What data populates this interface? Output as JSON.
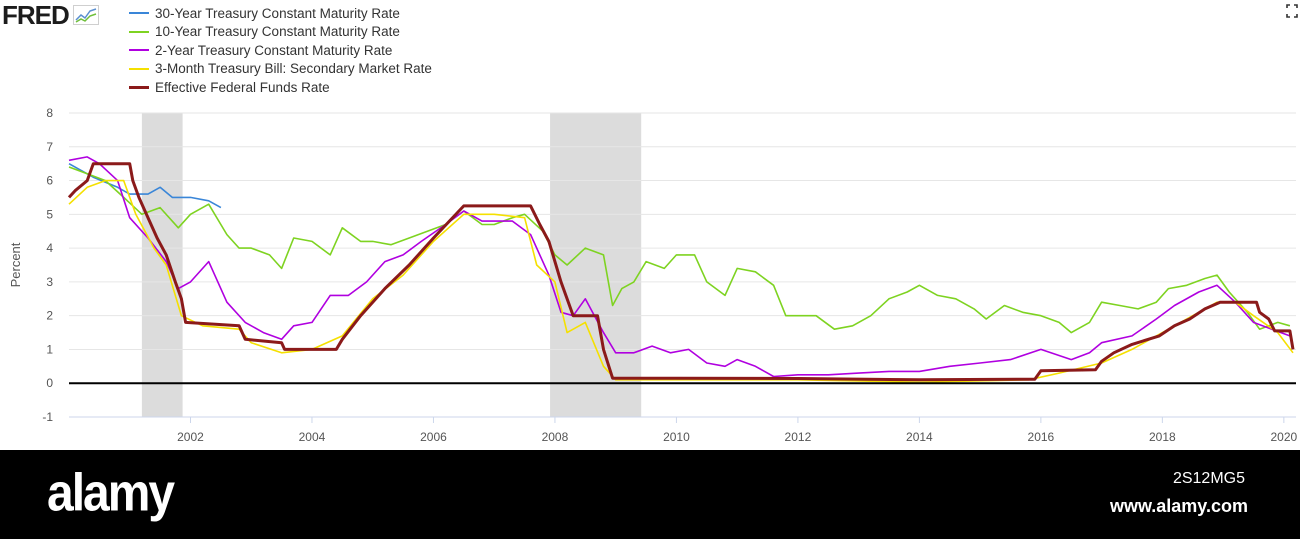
{
  "brand": {
    "logo_text": "FRED",
    "logo_icon": "line-graph-icon"
  },
  "colors": {
    "ten_year": "#7ed321",
    "two_year": "#b000e0",
    "three_month": "#f5e000",
    "fed_funds": "#8b1a1a",
    "thirty_year": "#3a86d8",
    "recession": "#dcdcdc",
    "grid": "#e6e6e6",
    "zero_line": "#000000"
  },
  "icons": {
    "fullscreen": "fullscreen-icon"
  },
  "watermark": {
    "logo": "alamy",
    "image_id": "2S12MG5",
    "url": "www.alamy.com"
  },
  "chart_data": {
    "type": "line",
    "title": "",
    "xlabel": "",
    "ylabel": "Percent",
    "xlim": [
      2000.0,
      2020.2
    ],
    "ylim": [
      -1,
      8
    ],
    "yticks": [
      -1,
      0,
      1,
      2,
      3,
      4,
      5,
      6,
      7,
      8
    ],
    "xticks": [
      2002,
      2004,
      2006,
      2008,
      2010,
      2012,
      2014,
      2016,
      2018,
      2020
    ],
    "grid": true,
    "legend": "top-left",
    "recessions": [
      [
        2001.2,
        2001.87
      ],
      [
        2007.92,
        2009.42
      ]
    ],
    "reference_line": 0,
    "series": [
      {
        "name": "30-Year Treasury Constant Maturity Rate",
        "color_key": "thirty_year",
        "points": [
          [
            2000.0,
            6.5
          ],
          [
            2000.4,
            6.1
          ],
          [
            2000.8,
            5.8
          ],
          [
            2001.0,
            5.6
          ],
          [
            2001.3,
            5.6
          ],
          [
            2001.5,
            5.8
          ],
          [
            2001.7,
            5.5
          ],
          [
            2002.0,
            5.5
          ],
          [
            2002.3,
            5.4
          ],
          [
            2002.5,
            5.2
          ]
        ]
      },
      {
        "name": "10-Year Treasury Constant Maturity Rate",
        "color_key": "ten_year",
        "points": [
          [
            2000.0,
            6.4
          ],
          [
            2000.3,
            6.2
          ],
          [
            2000.6,
            6.0
          ],
          [
            2000.9,
            5.5
          ],
          [
            2001.2,
            5.0
          ],
          [
            2001.5,
            5.2
          ],
          [
            2001.8,
            4.6
          ],
          [
            2002.0,
            5.0
          ],
          [
            2002.3,
            5.3
          ],
          [
            2002.6,
            4.4
          ],
          [
            2002.8,
            4.0
          ],
          [
            2003.0,
            4.0
          ],
          [
            2003.3,
            3.8
          ],
          [
            2003.5,
            3.4
          ],
          [
            2003.7,
            4.3
          ],
          [
            2004.0,
            4.2
          ],
          [
            2004.3,
            3.8
          ],
          [
            2004.5,
            4.6
          ],
          [
            2004.8,
            4.2
          ],
          [
            2005.0,
            4.2
          ],
          [
            2005.3,
            4.1
          ],
          [
            2005.6,
            4.3
          ],
          [
            2005.9,
            4.5
          ],
          [
            2006.2,
            4.7
          ],
          [
            2006.5,
            5.1
          ],
          [
            2006.8,
            4.7
          ],
          [
            2007.0,
            4.7
          ],
          [
            2007.3,
            4.9
          ],
          [
            2007.5,
            5.0
          ],
          [
            2007.8,
            4.5
          ],
          [
            2008.0,
            3.8
          ],
          [
            2008.2,
            3.5
          ],
          [
            2008.5,
            4.0
          ],
          [
            2008.8,
            3.8
          ],
          [
            2008.95,
            2.3
          ],
          [
            2009.1,
            2.8
          ],
          [
            2009.3,
            3.0
          ],
          [
            2009.5,
            3.6
          ],
          [
            2009.8,
            3.4
          ],
          [
            2010.0,
            3.8
          ],
          [
            2010.3,
            3.8
          ],
          [
            2010.5,
            3.0
          ],
          [
            2010.8,
            2.6
          ],
          [
            2011.0,
            3.4
          ],
          [
            2011.3,
            3.3
          ],
          [
            2011.6,
            2.9
          ],
          [
            2011.8,
            2.0
          ],
          [
            2012.0,
            2.0
          ],
          [
            2012.3,
            2.0
          ],
          [
            2012.6,
            1.6
          ],
          [
            2012.9,
            1.7
          ],
          [
            2013.2,
            2.0
          ],
          [
            2013.5,
            2.5
          ],
          [
            2013.8,
            2.7
          ],
          [
            2014.0,
            2.9
          ],
          [
            2014.3,
            2.6
          ],
          [
            2014.6,
            2.5
          ],
          [
            2014.9,
            2.2
          ],
          [
            2015.1,
            1.9
          ],
          [
            2015.4,
            2.3
          ],
          [
            2015.7,
            2.1
          ],
          [
            2016.0,
            2.0
          ],
          [
            2016.3,
            1.8
          ],
          [
            2016.5,
            1.5
          ],
          [
            2016.8,
            1.8
          ],
          [
            2017.0,
            2.4
          ],
          [
            2017.3,
            2.3
          ],
          [
            2017.6,
            2.2
          ],
          [
            2017.9,
            2.4
          ],
          [
            2018.1,
            2.8
          ],
          [
            2018.4,
            2.9
          ],
          [
            2018.7,
            3.1
          ],
          [
            2018.9,
            3.2
          ],
          [
            2019.1,
            2.7
          ],
          [
            2019.4,
            2.1
          ],
          [
            2019.6,
            1.6
          ],
          [
            2019.9,
            1.8
          ],
          [
            2020.1,
            1.7
          ]
        ]
      },
      {
        "name": "2-Year Treasury Constant Maturity Rate",
        "color_key": "two_year",
        "points": [
          [
            2000.0,
            6.6
          ],
          [
            2000.3,
            6.7
          ],
          [
            2000.5,
            6.5
          ],
          [
            2000.8,
            6.0
          ],
          [
            2001.0,
            4.9
          ],
          [
            2001.3,
            4.3
          ],
          [
            2001.6,
            3.6
          ],
          [
            2001.8,
            2.8
          ],
          [
            2002.0,
            3.0
          ],
          [
            2002.3,
            3.6
          ],
          [
            2002.6,
            2.4
          ],
          [
            2002.9,
            1.8
          ],
          [
            2003.2,
            1.5
          ],
          [
            2003.5,
            1.3
          ],
          [
            2003.7,
            1.7
          ],
          [
            2004.0,
            1.8
          ],
          [
            2004.3,
            2.6
          ],
          [
            2004.6,
            2.6
          ],
          [
            2004.9,
            3.0
          ],
          [
            2005.2,
            3.6
          ],
          [
            2005.5,
            3.8
          ],
          [
            2005.8,
            4.2
          ],
          [
            2006.2,
            4.7
          ],
          [
            2006.5,
            5.1
          ],
          [
            2006.8,
            4.8
          ],
          [
            2007.0,
            4.8
          ],
          [
            2007.3,
            4.8
          ],
          [
            2007.6,
            4.4
          ],
          [
            2007.9,
            3.2
          ],
          [
            2008.1,
            2.1
          ],
          [
            2008.3,
            2.0
          ],
          [
            2008.5,
            2.5
          ],
          [
            2008.8,
            1.5
          ],
          [
            2009.0,
            0.9
          ],
          [
            2009.3,
            0.9
          ],
          [
            2009.6,
            1.1
          ],
          [
            2009.9,
            0.9
          ],
          [
            2010.2,
            1.0
          ],
          [
            2010.5,
            0.6
          ],
          [
            2010.8,
            0.5
          ],
          [
            2011.0,
            0.7
          ],
          [
            2011.3,
            0.5
          ],
          [
            2011.6,
            0.2
          ],
          [
            2012.0,
            0.25
          ],
          [
            2012.5,
            0.25
          ],
          [
            2013.0,
            0.3
          ],
          [
            2013.5,
            0.35
          ],
          [
            2014.0,
            0.35
          ],
          [
            2014.5,
            0.5
          ],
          [
            2015.0,
            0.6
          ],
          [
            2015.5,
            0.7
          ],
          [
            2016.0,
            1.0
          ],
          [
            2016.5,
            0.7
          ],
          [
            2016.8,
            0.9
          ],
          [
            2017.0,
            1.2
          ],
          [
            2017.5,
            1.4
          ],
          [
            2017.9,
            1.9
          ],
          [
            2018.2,
            2.3
          ],
          [
            2018.6,
            2.7
          ],
          [
            2018.9,
            2.9
          ],
          [
            2019.2,
            2.4
          ],
          [
            2019.5,
            1.8
          ],
          [
            2019.8,
            1.6
          ],
          [
            2020.1,
            1.4
          ]
        ]
      },
      {
        "name": "3-Month Treasury Bill: Secondary Market Rate",
        "color_key": "three_month",
        "points": [
          [
            2000.0,
            5.3
          ],
          [
            2000.3,
            5.8
          ],
          [
            2000.6,
            6.0
          ],
          [
            2000.9,
            6.0
          ],
          [
            2001.1,
            5.0
          ],
          [
            2001.4,
            4.0
          ],
          [
            2001.6,
            3.5
          ],
          [
            2001.85,
            2.0
          ],
          [
            2002.2,
            1.7
          ],
          [
            2002.8,
            1.6
          ],
          [
            2003.0,
            1.2
          ],
          [
            2003.5,
            0.9
          ],
          [
            2004.0,
            1.0
          ],
          [
            2004.5,
            1.4
          ],
          [
            2005.0,
            2.5
          ],
          [
            2005.5,
            3.2
          ],
          [
            2006.0,
            4.2
          ],
          [
            2006.5,
            5.0
          ],
          [
            2007.0,
            5.0
          ],
          [
            2007.5,
            4.9
          ],
          [
            2007.7,
            3.5
          ],
          [
            2008.0,
            3.0
          ],
          [
            2008.2,
            1.5
          ],
          [
            2008.5,
            1.8
          ],
          [
            2008.8,
            0.5
          ],
          [
            2009.0,
            0.1
          ],
          [
            2010.0,
            0.1
          ],
          [
            2012.0,
            0.1
          ],
          [
            2014.0,
            0.03
          ],
          [
            2015.8,
            0.1
          ],
          [
            2016.3,
            0.3
          ],
          [
            2017.0,
            0.6
          ],
          [
            2017.5,
            1.0
          ],
          [
            2018.0,
            1.5
          ],
          [
            2018.5,
            2.0
          ],
          [
            2018.9,
            2.4
          ],
          [
            2019.2,
            2.4
          ],
          [
            2019.5,
            2.0
          ],
          [
            2019.9,
            1.5
          ],
          [
            2020.15,
            0.9
          ]
        ]
      },
      {
        "name": "Effective Federal Funds Rate",
        "color_key": "fed_funds",
        "points": [
          [
            2000.0,
            5.5
          ],
          [
            2000.1,
            5.7
          ],
          [
            2000.3,
            6.0
          ],
          [
            2000.4,
            6.5
          ],
          [
            2001.0,
            6.5
          ],
          [
            2001.05,
            6.0
          ],
          [
            2001.15,
            5.5
          ],
          [
            2001.3,
            4.9
          ],
          [
            2001.45,
            4.3
          ],
          [
            2001.6,
            3.8
          ],
          [
            2001.75,
            3.0
          ],
          [
            2001.85,
            2.5
          ],
          [
            2001.92,
            1.8
          ],
          [
            2002.8,
            1.7
          ],
          [
            2002.9,
            1.3
          ],
          [
            2003.5,
            1.2
          ],
          [
            2003.55,
            1.0
          ],
          [
            2004.4,
            1.0
          ],
          [
            2004.5,
            1.3
          ],
          [
            2004.8,
            2.0
          ],
          [
            2005.2,
            2.8
          ],
          [
            2005.6,
            3.5
          ],
          [
            2006.0,
            4.3
          ],
          [
            2006.5,
            5.25
          ],
          [
            2007.6,
            5.25
          ],
          [
            2007.75,
            4.7
          ],
          [
            2007.9,
            4.2
          ],
          [
            2008.1,
            3.0
          ],
          [
            2008.3,
            2.0
          ],
          [
            2008.7,
            2.0
          ],
          [
            2008.8,
            1.0
          ],
          [
            2008.95,
            0.15
          ],
          [
            2010.0,
            0.15
          ],
          [
            2012.0,
            0.14
          ],
          [
            2014.0,
            0.1
          ],
          [
            2015.9,
            0.12
          ],
          [
            2016.0,
            0.37
          ],
          [
            2016.9,
            0.4
          ],
          [
            2017.0,
            0.65
          ],
          [
            2017.2,
            0.9
          ],
          [
            2017.5,
            1.15
          ],
          [
            2017.95,
            1.4
          ],
          [
            2018.2,
            1.7
          ],
          [
            2018.45,
            1.9
          ],
          [
            2018.7,
            2.2
          ],
          [
            2018.95,
            2.4
          ],
          [
            2019.55,
            2.4
          ],
          [
            2019.6,
            2.1
          ],
          [
            2019.75,
            1.9
          ],
          [
            2019.85,
            1.55
          ],
          [
            2020.1,
            1.55
          ],
          [
            2020.15,
            1.0
          ]
        ]
      }
    ]
  }
}
